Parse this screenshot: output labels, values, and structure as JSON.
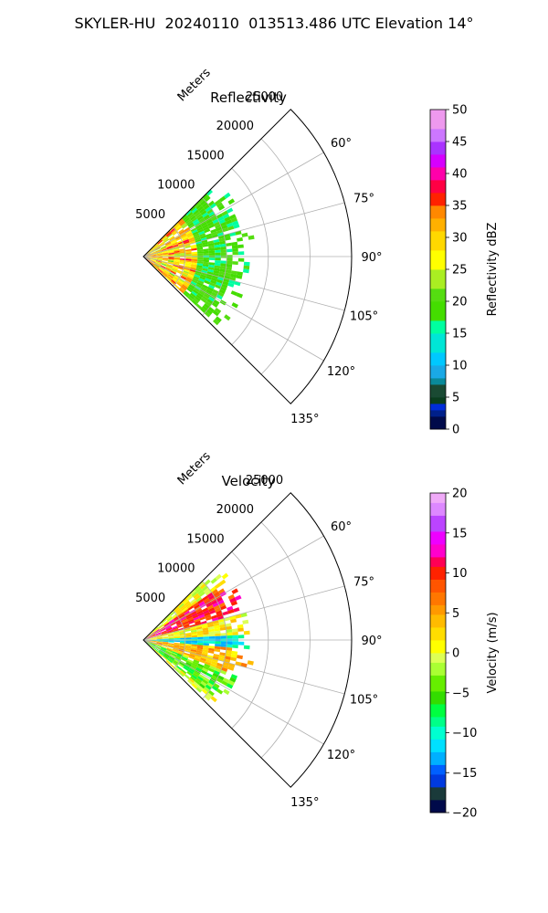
{
  "figure_title": "SKYLER-HU  20240110  013513.486 UTC Elevation 14°",
  "chart_data": [
    {
      "type": "heatmap",
      "subtype": "polar-sector",
      "title": "Reflectivity",
      "range_axis_label": "Meters",
      "range_ticks": [
        "5000",
        "10000",
        "15000",
        "20000",
        "25000"
      ],
      "range_values": [
        5000,
        10000,
        15000,
        20000,
        25000
      ],
      "angle_ticks": [
        "60°",
        "75°",
        "90°",
        "105°",
        "120°",
        "135°"
      ],
      "angle_values": [
        60,
        75,
        90,
        105,
        120,
        135
      ],
      "angle_range": [
        45,
        135
      ],
      "range_max": 25000,
      "grid": true,
      "colorbar": {
        "label": "Reflectivity dBZ",
        "min": 0,
        "max": 50,
        "tick_labels": [
          "0",
          "5",
          "10",
          "15",
          "20",
          "25",
          "30",
          "35",
          "40",
          "45",
          "50"
        ],
        "tick_values": [
          0,
          5,
          10,
          15,
          20,
          25,
          30,
          35,
          40,
          45,
          50
        ],
        "colormap": "NWSRef"
      },
      "echo_extent_m": {
        "start": 0,
        "end": 12000
      },
      "echo_bands": [
        {
          "range_m": [
            0,
            6000
          ],
          "dominant_value": 30
        },
        {
          "range_m": [
            6000,
            12000
          ],
          "dominant_value": 20
        }
      ]
    },
    {
      "type": "heatmap",
      "subtype": "polar-sector",
      "title": "Velocity",
      "range_axis_label": "Meters",
      "range_ticks": [
        "5000",
        "10000",
        "15000",
        "20000",
        "25000"
      ],
      "range_values": [
        5000,
        10000,
        15000,
        20000,
        25000
      ],
      "angle_ticks": [
        "60°",
        "75°",
        "90°",
        "105°",
        "120°",
        "135°"
      ],
      "angle_values": [
        60,
        75,
        90,
        105,
        120,
        135
      ],
      "angle_range": [
        45,
        135
      ],
      "range_max": 25000,
      "grid": true,
      "colorbar": {
        "label": "Velocity (m/s)",
        "min": -20,
        "max": 20,
        "tick_labels": [
          "−20",
          "−15",
          "−10",
          "−5",
          "0",
          "5",
          "10",
          "15",
          "20"
        ],
        "tick_values": [
          -20,
          -15,
          -10,
          -5,
          0,
          5,
          10,
          15,
          20
        ],
        "colormap": "NWSVel"
      },
      "echo_extent_m": {
        "start": 0,
        "end": 12000
      },
      "velocity_regions": [
        {
          "azimuth": [
            55,
            75
          ],
          "range_m": [
            0,
            12000
          ],
          "value": 10
        },
        {
          "azimuth": [
            75,
            88
          ],
          "range_m": [
            0,
            12000
          ],
          "value": 1
        },
        {
          "azimuth": [
            88,
            95
          ],
          "range_m": [
            0,
            12000
          ],
          "value": -11
        },
        {
          "azimuth": [
            95,
            112
          ],
          "range_m": [
            0,
            12000
          ],
          "value": 4
        },
        {
          "azimuth": [
            112,
            130
          ],
          "range_m": [
            0,
            12000
          ],
          "value": -5
        }
      ]
    }
  ]
}
